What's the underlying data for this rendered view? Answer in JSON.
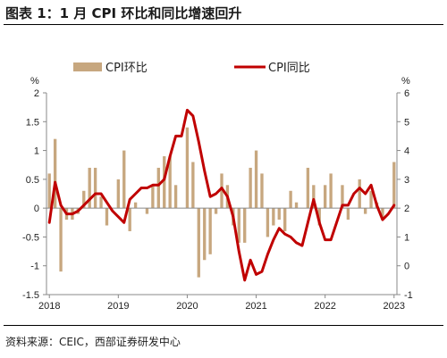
{
  "page": {
    "title": "图表 1：1 月 CPI 环比和同比增速回升",
    "source": "资料来源：CEIC，西部证券研发中心"
  },
  "chart_data": {
    "type": "bar",
    "legend_placement": "top-center",
    "grid": false,
    "left_axis": {
      "unit": "%",
      "ylim": [
        -1.5,
        2
      ],
      "ticks": [
        -1.5,
        -1,
        -0.5,
        0,
        0.5,
        1,
        1.5,
        2
      ],
      "tick_labels": [
        "-1.5",
        "-1",
        "-0.5",
        "0",
        "0.5",
        "1",
        "1.5",
        "2"
      ]
    },
    "right_axis": {
      "unit": "%",
      "ylim": [
        -1,
        6
      ],
      "ticks": [
        -1,
        0,
        1,
        2,
        3,
        4,
        5,
        6
      ],
      "tick_labels": [
        "-1",
        "0",
        "1",
        "2",
        "3",
        "4",
        "5",
        "6"
      ]
    },
    "x_axis": {
      "range": [
        "2018-01",
        "2023-01"
      ],
      "tick_labels": [
        "2018",
        "2019",
        "2020",
        "2021",
        "2022",
        "2023"
      ]
    },
    "months": [
      "2018-01",
      "2018-02",
      "2018-03",
      "2018-04",
      "2018-05",
      "2018-06",
      "2018-07",
      "2018-08",
      "2018-09",
      "2018-10",
      "2018-11",
      "2018-12",
      "2019-01",
      "2019-02",
      "2019-03",
      "2019-04",
      "2019-05",
      "2019-06",
      "2019-07",
      "2019-08",
      "2019-09",
      "2019-10",
      "2019-11",
      "2019-12",
      "2020-01",
      "2020-02",
      "2020-03",
      "2020-04",
      "2020-05",
      "2020-06",
      "2020-07",
      "2020-08",
      "2020-09",
      "2020-10",
      "2020-11",
      "2020-12",
      "2021-01",
      "2021-02",
      "2021-03",
      "2021-04",
      "2021-05",
      "2021-06",
      "2021-07",
      "2021-08",
      "2021-09",
      "2021-10",
      "2021-11",
      "2021-12",
      "2022-01",
      "2022-02",
      "2022-03",
      "2022-04",
      "2022-05",
      "2022-06",
      "2022-07",
      "2022-08",
      "2022-09",
      "2022-10",
      "2022-11",
      "2022-12",
      "2023-01"
    ],
    "series": [
      {
        "name": "CPI环比",
        "kind": "bar",
        "axis": "left",
        "color": "#c7a77f",
        "values": [
          0.6,
          1.2,
          -1.1,
          -0.2,
          -0.2,
          -0.1,
          0.3,
          0.7,
          0.7,
          0.2,
          -0.3,
          0.0,
          0.5,
          1.0,
          -0.4,
          0.1,
          0.0,
          -0.1,
          0.4,
          0.7,
          0.9,
          0.9,
          0.4,
          0.0,
          1.4,
          0.8,
          -1.2,
          -0.9,
          -0.8,
          -0.1,
          0.6,
          0.4,
          -0.3,
          -0.6,
          -0.6,
          0.7,
          1.0,
          0.6,
          -0.5,
          -0.3,
          -0.2,
          -0.4,
          0.3,
          0.1,
          0.0,
          0.7,
          0.4,
          -0.3,
          0.4,
          0.6,
          0.0,
          0.4,
          -0.2,
          0.0,
          0.5,
          -0.1,
          0.3,
          0.1,
          -0.2,
          0.0,
          0.8
        ]
      },
      {
        "name": "CPI同比",
        "kind": "line",
        "axis": "right",
        "color": "#c00000",
        "values": [
          1.5,
          2.9,
          2.1,
          1.8,
          1.8,
          1.9,
          2.1,
          2.3,
          2.5,
          2.5,
          2.2,
          1.9,
          1.7,
          1.5,
          2.3,
          2.5,
          2.7,
          2.7,
          2.8,
          2.8,
          3.0,
          3.8,
          4.5,
          4.5,
          5.4,
          5.2,
          4.3,
          3.3,
          2.4,
          2.5,
          2.7,
          2.4,
          1.7,
          0.5,
          -0.5,
          0.2,
          -0.3,
          -0.2,
          0.4,
          0.9,
          1.3,
          1.1,
          1.0,
          0.8,
          0.7,
          1.5,
          2.3,
          1.5,
          0.9,
          0.9,
          1.5,
          2.1,
          2.1,
          2.5,
          2.7,
          2.5,
          2.8,
          2.1,
          1.6,
          1.8,
          2.1
        ]
      }
    ]
  }
}
